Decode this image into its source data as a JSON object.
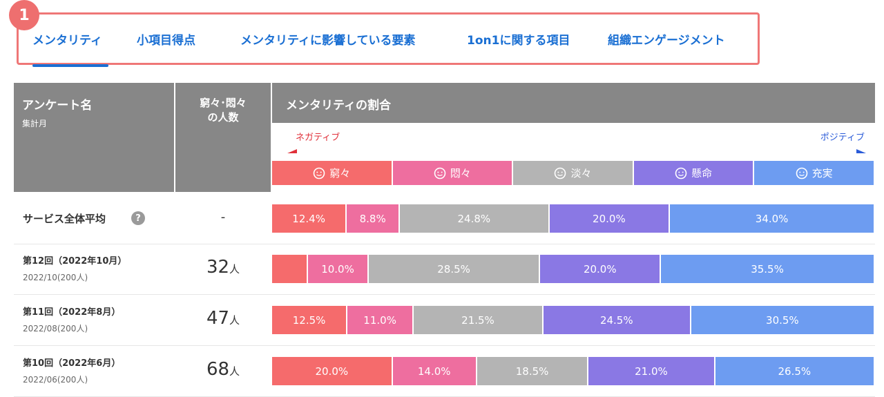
{
  "annotation": {
    "badge": "1"
  },
  "tabs": [
    "メンタリティ",
    "小項目得点",
    "メンタリティに影響している要素",
    "1on1に関する項目",
    "組織エンゲージメント"
  ],
  "table": {
    "header": {
      "name": "アンケート名",
      "name_sub": "集計月",
      "count": [
        "窮々･悶々",
        "の人数"
      ],
      "ratio": "メンタリティの割合",
      "negative": "ネガティブ",
      "positive": "ポジティブ"
    },
    "unit": "人",
    "rows": [
      {
        "count": "-",
        "help": "?"
      },
      {
        "sub": "2022/10(200人)",
        "count": 32
      },
      {
        "sub": "2022/08(200人)",
        "count": 47
      },
      {
        "sub": "2022/06(200人)",
        "count": 68
      }
    ]
  },
  "chart_data": {
    "type": "stacked-bar",
    "orientation": "horizontal",
    "categories": [
      "サービス全体平均",
      "第12回（2022年10月）",
      "第11回（2022年8月）",
      "第10回（2022年6月）"
    ],
    "xlim": [
      0,
      100
    ],
    "series": [
      {
        "name": "窮々",
        "color": "#f56b6c",
        "values": [
          12.4,
          6.0,
          12.5,
          20.0
        ],
        "value_labels": [
          "12.4%",
          null,
          "12.5%",
          "20.0%"
        ]
      },
      {
        "name": "悶々",
        "color": "#ee6e9f",
        "values": [
          8.8,
          10.0,
          11.0,
          14.0
        ],
        "value_labels": [
          "8.8%",
          "10.0%",
          "11.0%",
          "14.0%"
        ]
      },
      {
        "name": "淡々",
        "color": "#b4b4b4",
        "values": [
          24.8,
          28.5,
          21.5,
          18.5
        ],
        "value_labels": [
          "24.8%",
          "28.5%",
          "21.5%",
          "18.5%"
        ]
      },
      {
        "name": "懸命",
        "color": "#8a78e4",
        "values": [
          20.0,
          20.0,
          24.5,
          21.0
        ],
        "value_labels": [
          "20.0%",
          "20.0%",
          "24.5%",
          "21.0%"
        ]
      },
      {
        "name": "充実",
        "color": "#6d9cf1",
        "values": [
          34.0,
          35.5,
          30.5,
          26.5
        ],
        "value_labels": [
          "34.0%",
          "35.5%",
          "30.5%",
          "26.5%"
        ]
      }
    ]
  }
}
